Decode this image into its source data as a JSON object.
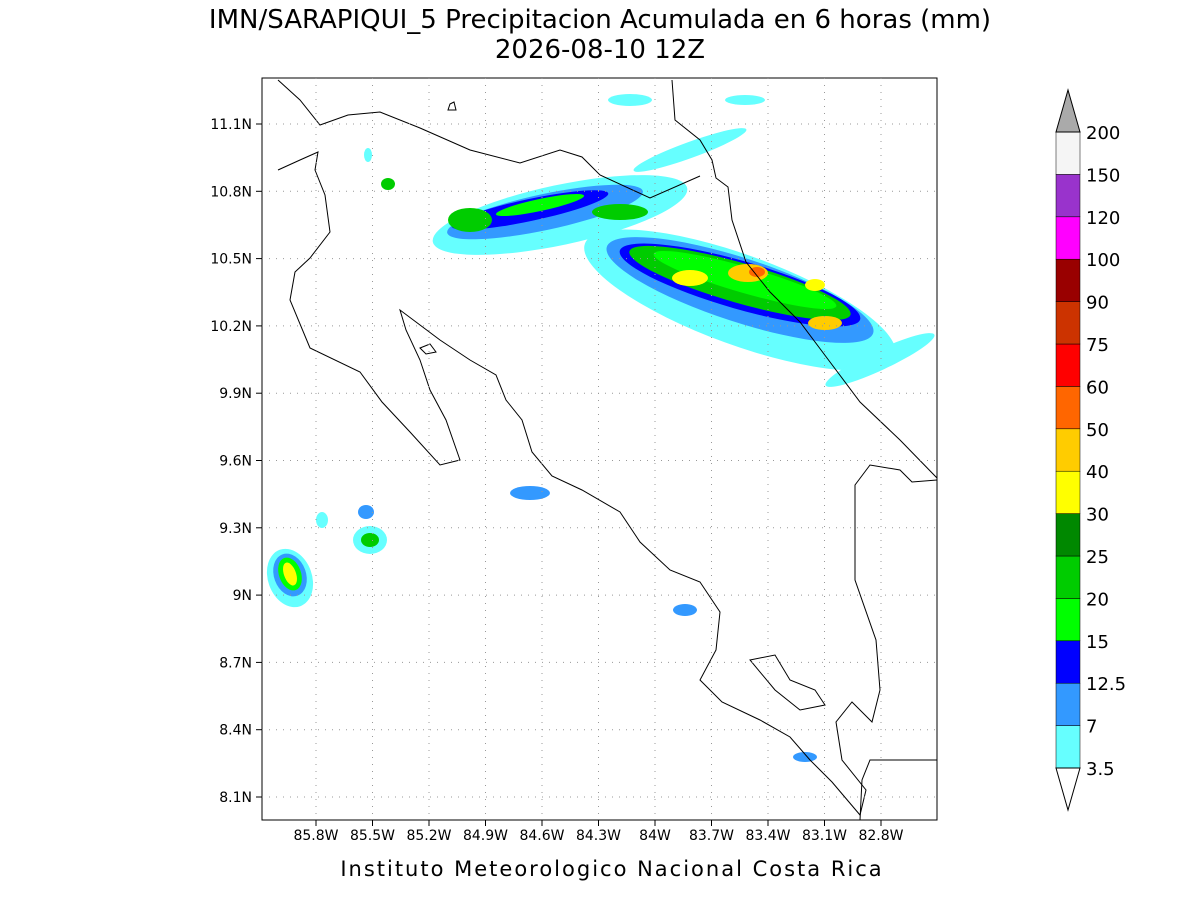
{
  "title": "IMN/SARAPIQUI_5 Precipitacion Acumulada en 6 horas (mm)",
  "subtitle": "2026-08-10 12Z",
  "map": {
    "lat_ticks": [
      "11.1N",
      "10.8N",
      "10.5N",
      "10.2N",
      "9.9N",
      "9.6N",
      "9.3N",
      "9N",
      "8.7N",
      "8.4N",
      "8.1N"
    ],
    "lon_ticks": [
      "85.8W",
      "85.5W",
      "85.2W",
      "84.9W",
      "84.6W",
      "84.3W",
      "84W",
      "83.7W",
      "83.4W",
      "83.1W",
      "82.8W"
    ]
  },
  "colorbar": {
    "levels": [
      3.5,
      7,
      12.5,
      15,
      20,
      25,
      30,
      40,
      50,
      60,
      75,
      90,
      100,
      120,
      150,
      200
    ],
    "colors": [
      "#66ffff",
      "#3399ff",
      "#0000ff",
      "#00ff00",
      "#00cc00",
      "#008800",
      "#ffff00",
      "#ffcc00",
      "#ff6600",
      "#ff0000",
      "#cc3300",
      "#990000",
      "#ff00ff",
      "#9933cc",
      "#f5f5f5"
    ],
    "under_color": "#ffffff",
    "over_color": "#aaaaaa"
  },
  "footer": "Instituto Meteorologico Nacional Costa Rica"
}
